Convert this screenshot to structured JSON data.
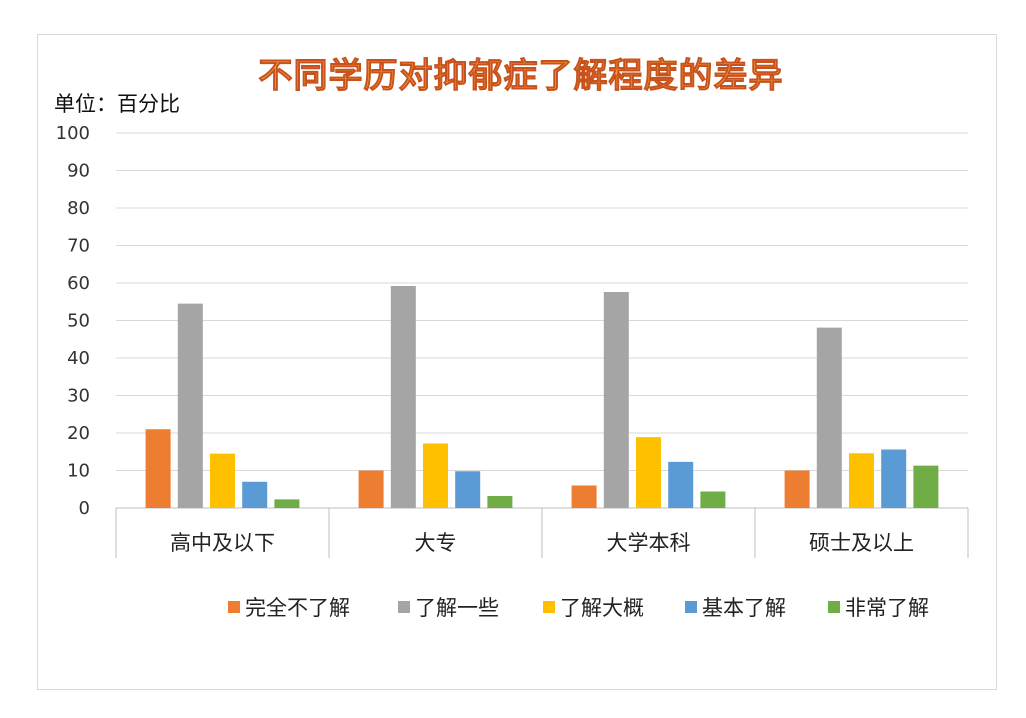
{
  "chart_data": {
    "type": "bar",
    "title": "不同学历对抑郁症了解程度的差异",
    "unit_label": "单位：百分比",
    "ylim": [
      0,
      100
    ],
    "yticks": [
      0,
      10,
      20,
      30,
      40,
      50,
      60,
      70,
      80,
      90,
      100
    ],
    "grid": true,
    "legend_position": "bottom",
    "categories": [
      "高中及以下",
      "大专",
      "大学本科",
      "硕士及以上"
    ],
    "series": [
      {
        "name": "完全不了解",
        "color": "#ed7d31",
        "values": [
          21,
          10,
          6,
          10
        ]
      },
      {
        "name": "了解一些",
        "color": "#a5a5a5",
        "values": [
          54.5,
          59.2,
          57.6,
          48.1
        ]
      },
      {
        "name": "了解大概",
        "color": "#ffc000",
        "values": [
          14.5,
          17.2,
          18.9,
          14.6
        ]
      },
      {
        "name": "基本了解",
        "color": "#5b9bd5",
        "values": [
          7,
          9.8,
          12.3,
          15.6
        ]
      },
      {
        "name": "非常了解",
        "color": "#70ad47",
        "values": [
          2.3,
          3.2,
          4.4,
          11.3
        ]
      }
    ]
  }
}
